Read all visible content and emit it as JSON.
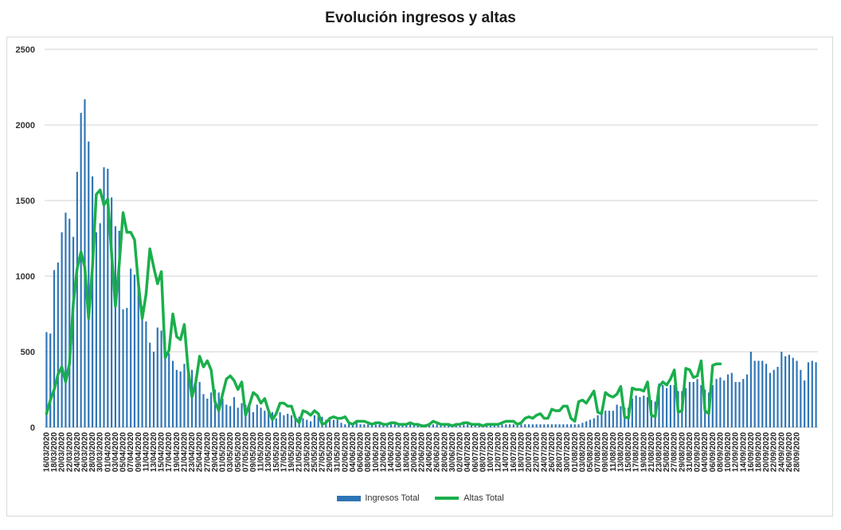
{
  "chart_data": {
    "type": "bar",
    "title": "Evolución ingresos y altas",
    "xlabel": "",
    "ylabel": "",
    "ylim": [
      0,
      2500
    ],
    "yticks": [
      0,
      500,
      1000,
      1500,
      2000,
      2500
    ],
    "grid": true,
    "legend_position": "bottom",
    "colors": {
      "bars": "#2e75b6",
      "line": "#1aaf4b",
      "grid": "#d0d0d0"
    },
    "start_date": "16/03/2020",
    "end_date": "28/09/2020",
    "tick_every_days": 2,
    "tick_labels": [
      "16/03/2020",
      "18/03/2020",
      "20/03/2020",
      "22/03/2020",
      "24/03/2020",
      "26/03/2020",
      "28/03/2020",
      "30/03/2020",
      "01/04/2020",
      "03/04/2020",
      "05/04/2020",
      "07/04/2020",
      "09/04/2020",
      "11/04/2020",
      "13/04/2020",
      "15/04/2020",
      "17/04/2020",
      "19/04/2020",
      "21/04/2020",
      "23/04/2020",
      "25/04/2020",
      "27/04/2020",
      "29/04/2020",
      "01/05/2020",
      "03/05/2020",
      "05/05/2020",
      "07/05/2020",
      "09/05/2020",
      "11/05/2020",
      "13/05/2020",
      "15/05/2020",
      "17/05/2020",
      "19/05/2020",
      "21/05/2020",
      "23/05/2020",
      "25/05/2020",
      "27/05/2020",
      "29/05/2020",
      "31/05/2020",
      "02/06/2020",
      "04/06/2020",
      "06/06/2020",
      "08/06/2020",
      "10/06/2020",
      "12/06/2020",
      "14/06/2020",
      "16/06/2020",
      "18/06/2020",
      "20/06/2020",
      "22/06/2020",
      "24/06/2020",
      "26/06/2020",
      "28/06/2020",
      "30/06/2020",
      "02/07/2020",
      "04/07/2020",
      "06/07/2020",
      "08/07/2020",
      "10/07/2020",
      "12/07/2020",
      "14/07/2020",
      "16/07/2020",
      "18/07/2020",
      "20/07/2020",
      "22/07/2020",
      "24/07/2020",
      "26/07/2020",
      "28/07/2020",
      "30/07/2020",
      "01/08/2020",
      "03/08/2020",
      "05/08/2020",
      "07/08/2020",
      "09/08/2020",
      "11/08/2020",
      "13/08/2020",
      "15/08/2020",
      "17/08/2020",
      "19/08/2020",
      "21/08/2020",
      "23/08/2020",
      "25/08/2020",
      "27/08/2020",
      "29/08/2020",
      "31/08/2020",
      "02/09/2020",
      "04/09/2020",
      "06/09/2020",
      "08/09/2020",
      "10/09/2020",
      "12/09/2020",
      "14/09/2020",
      "16/09/2020",
      "18/09/2020",
      "20/09/2020",
      "22/09/2020",
      "24/09/2020",
      "26/09/2020",
      "28/09/2020"
    ],
    "series": [
      {
        "name": "Ingresos Total",
        "type": "bar",
        "values": [
          630,
          620,
          1040,
          1090,
          1290,
          1420,
          1380,
          1260,
          1690,
          2080,
          2170,
          1890,
          1660,
          1290,
          1350,
          1720,
          1710,
          1520,
          1330,
          1300,
          780,
          790,
          1050,
          1010,
          920,
          800,
          700,
          560,
          500,
          660,
          640,
          560,
          490,
          440,
          380,
          370,
          420,
          380,
          380,
          330,
          300,
          220,
          190,
          230,
          250,
          230,
          190,
          150,
          140,
          200,
          130,
          160,
          150,
          140,
          100,
          150,
          130,
          110,
          100,
          100,
          60,
          100,
          80,
          90,
          80,
          70,
          70,
          60,
          50,
          40,
          80,
          70,
          70,
          50,
          50,
          50,
          50,
          30,
          20,
          40,
          20,
          30,
          20,
          20,
          20,
          20,
          20,
          20,
          20,
          20,
          20,
          20,
          20,
          20,
          20,
          20,
          20,
          20,
          20,
          20,
          20,
          20,
          20,
          20,
          20,
          20,
          20,
          20,
          20,
          20,
          20,
          20,
          20,
          20,
          20,
          20,
          20,
          20,
          20,
          20,
          20,
          20,
          20,
          20,
          20,
          20,
          20,
          20,
          20,
          20,
          20,
          20,
          20,
          20,
          20,
          20,
          20,
          20,
          20,
          20,
          30,
          40,
          50,
          60,
          80,
          100,
          110,
          110,
          110,
          150,
          140,
          130,
          130,
          190,
          210,
          200,
          210,
          200,
          180,
          170,
          290,
          280,
          260,
          280,
          280,
          240,
          240,
          260,
          300,
          300,
          320,
          280,
          250,
          230,
          280,
          320,
          330,
          310,
          350,
          360,
          300,
          300,
          320,
          350,
          500,
          440,
          440,
          440,
          420,
          360,
          380,
          400,
          500,
          470,
          480,
          460,
          440,
          380,
          310,
          430,
          440,
          430
        ]
      },
      {
        "name": "Altas Total",
        "type": "line",
        "values": [
          90,
          180,
          250,
          350,
          400,
          300,
          420,
          820,
          1050,
          1160,
          1060,
          720,
          1060,
          1540,
          1570,
          1470,
          1510,
          1150,
          800,
          1080,
          1420,
          1290,
          1290,
          1240,
          950,
          720,
          880,
          1180,
          1060,
          950,
          1030,
          460,
          510,
          750,
          600,
          580,
          680,
          380,
          200,
          300,
          470,
          400,
          440,
          380,
          170,
          110,
          220,
          320,
          340,
          310,
          250,
          300,
          80,
          150,
          230,
          210,
          160,
          190,
          110,
          50,
          90,
          160,
          160,
          140,
          140,
          60,
          30,
          110,
          100,
          80,
          110,
          90,
          20,
          30,
          60,
          70,
          60,
          60,
          70,
          30,
          20,
          40,
          40,
          40,
          30,
          20,
          30,
          30,
          20,
          20,
          30,
          30,
          20,
          20,
          20,
          30,
          20,
          20,
          10,
          10,
          20,
          40,
          30,
          20,
          20,
          20,
          10,
          20,
          20,
          30,
          30,
          20,
          20,
          20,
          10,
          20,
          20,
          20,
          20,
          30,
          40,
          40,
          40,
          20,
          30,
          60,
          70,
          60,
          80,
          90,
          60,
          60,
          120,
          110,
          110,
          140,
          140,
          60,
          40,
          170,
          180,
          160,
          200,
          240,
          100,
          90,
          230,
          210,
          200,
          220,
          270,
          70,
          60,
          260,
          250,
          250,
          240,
          300,
          80,
          70,
          270,
          300,
          280,
          320,
          380,
          100,
          110,
          390,
          380,
          330,
          340,
          440,
          110,
          90,
          410,
          420,
          420
        ]
      }
    ]
  }
}
